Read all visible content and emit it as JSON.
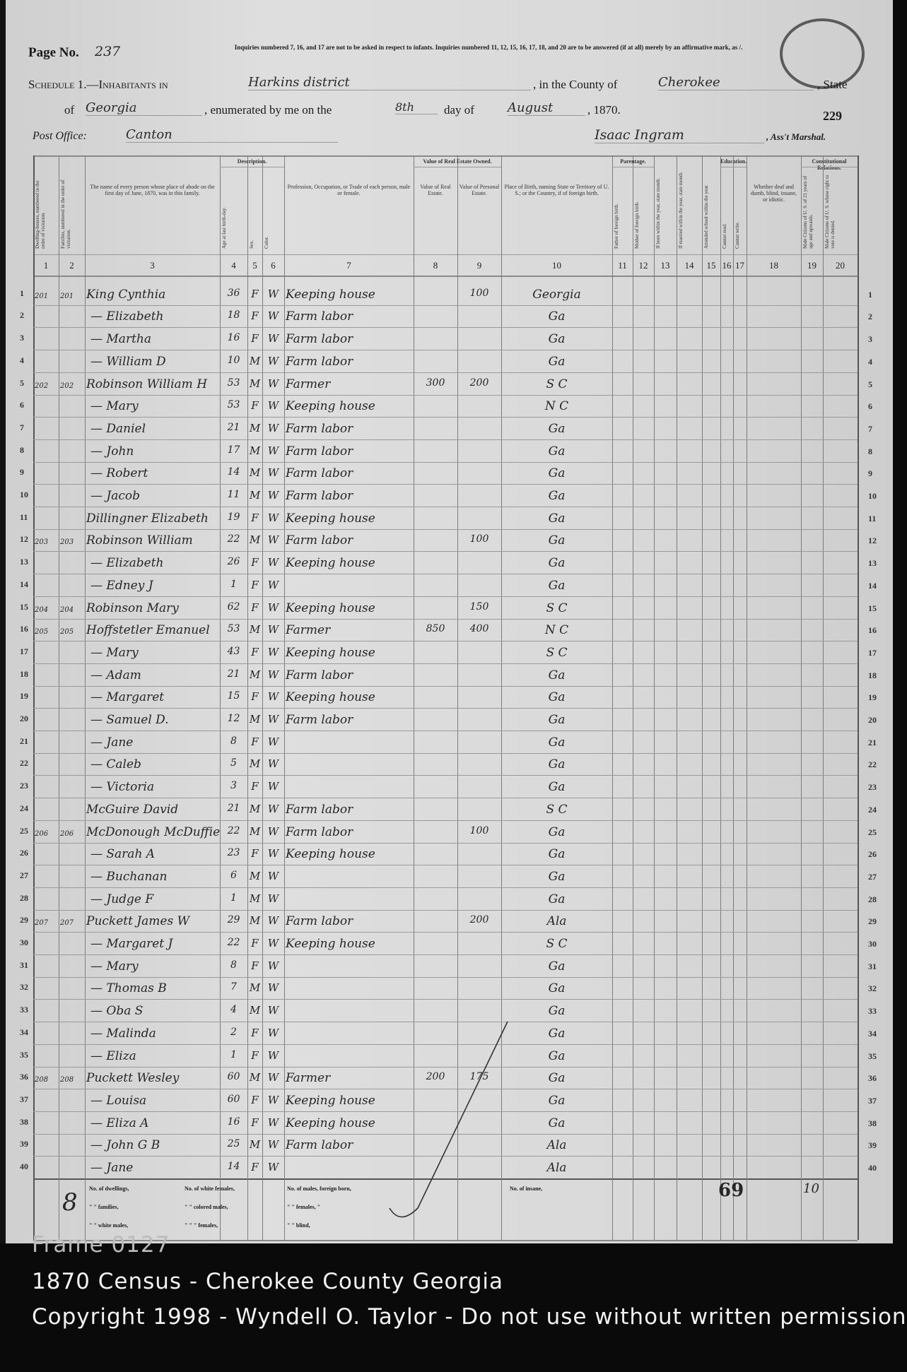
{
  "header": {
    "page_label": "Page No.",
    "page_no": "237",
    "instructions": "Inquiries numbered 7, 16, and 17 are not to be asked in respect to infants. Inquiries numbered 11, 12, 15, 16, 17, 18, and 20 are to be answered (if at all) merely by an affirmative mark, as /.",
    "schedule_label": "Schedule 1.—Inhabitants in",
    "district": "Harkins district",
    "county_label": ", in the County of",
    "county": "Cherokee",
    "state_label": ", State",
    "of_label": "of",
    "state": "Georgia",
    "enumerated_label": ", enumerated by me on the",
    "day": "8th",
    "day_of_label": "day of",
    "month": "August",
    "year": ", 1870.",
    "sheet_number": "229",
    "post_office_label": "Post Office:",
    "post_office": "Canton",
    "marshal_name": "Isaac Ingram",
    "marshal_label": ", Ass't Marshal."
  },
  "column_groups": [
    "Description.",
    "Value of Real Estate Owned.",
    "Parentage.",
    "Education.",
    "Constitutional Relations."
  ],
  "column_headers": [
    "Dwelling-houses, numbered in the order of visitation.",
    "Families, numbered in the order of visitation.",
    "The name of every person whose place of abode on the first day of June, 1870, was in this family.",
    "Age at last birth-day.",
    "Sex.",
    "Color.",
    "Profession, Occupation, or Trade of each person, male or female.",
    "Value of Real Estate.",
    "Value of Personal Estate.",
    "Place of Birth, naming State or Territory of U. S.; or the Country, if of foreign birth.",
    "Father of foreign birth.",
    "Mother of foreign birth.",
    "If born within the year, state month.",
    "If married within the year, state month.",
    "Attended school within the year.",
    "Cannot read.",
    "Cannot write.",
    "Whether deaf and dumb, blind, insane, or idiotic.",
    "Male Citizens of U. S. of 21 years of age and upwards.",
    "Male Citizens of U. S. whose right to vote is denied."
  ],
  "column_numbers": [
    "1",
    "2",
    "3",
    "4",
    "5",
    "6",
    "7",
    "8",
    "9",
    "10",
    "11",
    "12",
    "13",
    "14",
    "15",
    "16",
    "17",
    "18",
    "19",
    "20"
  ],
  "rows": [
    [
      "201",
      "201",
      "King Cynthia",
      "36",
      "F",
      "W",
      "Keeping house",
      "",
      "100",
      "Georgia"
    ],
    [
      "",
      "",
      "— Elizabeth",
      "18",
      "F",
      "W",
      "Farm labor",
      "",
      "",
      "Ga"
    ],
    [
      "",
      "",
      "— Martha",
      "16",
      "F",
      "W",
      "Farm labor",
      "",
      "",
      "Ga"
    ],
    [
      "",
      "",
      "— William D",
      "10",
      "M",
      "W",
      "Farm labor",
      "",
      "",
      "Ga"
    ],
    [
      "202",
      "202",
      "Robinson William H",
      "53",
      "M",
      "W",
      "Farmer",
      "300",
      "200",
      "S C"
    ],
    [
      "",
      "",
      "— Mary",
      "53",
      "F",
      "W",
      "Keeping house",
      "",
      "",
      "N C"
    ],
    [
      "",
      "",
      "— Daniel",
      "21",
      "M",
      "W",
      "Farm labor",
      "",
      "",
      "Ga"
    ],
    [
      "",
      "",
      "— John",
      "17",
      "M",
      "W",
      "Farm labor",
      "",
      "",
      "Ga"
    ],
    [
      "",
      "",
      "— Robert",
      "14",
      "M",
      "W",
      "Farm labor",
      "",
      "",
      "Ga"
    ],
    [
      "",
      "",
      "— Jacob",
      "11",
      "M",
      "W",
      "Farm labor",
      "",
      "",
      "Ga"
    ],
    [
      "",
      "",
      "Dillingner Elizabeth",
      "19",
      "F",
      "W",
      "Keeping house",
      "",
      "",
      "Ga"
    ],
    [
      "203",
      "203",
      "Robinson William",
      "22",
      "M",
      "W",
      "Farm labor",
      "",
      "100",
      "Ga"
    ],
    [
      "",
      "",
      "— Elizabeth",
      "26",
      "F",
      "W",
      "Keeping house",
      "",
      "",
      "Ga"
    ],
    [
      "",
      "",
      "— Edney J",
      "1",
      "F",
      "W",
      "",
      "",
      "",
      "Ga"
    ],
    [
      "204",
      "204",
      "Robinson Mary",
      "62",
      "F",
      "W",
      "Keeping house",
      "",
      "150",
      "S C"
    ],
    [
      "205",
      "205",
      "Hoffstetler Emanuel",
      "53",
      "M",
      "W",
      "Farmer",
      "850",
      "400",
      "N C"
    ],
    [
      "",
      "",
      "— Mary",
      "43",
      "F",
      "W",
      "Keeping house",
      "",
      "",
      "S C"
    ],
    [
      "",
      "",
      "— Adam",
      "21",
      "M",
      "W",
      "Farm labor",
      "",
      "",
      "Ga"
    ],
    [
      "",
      "",
      "— Margaret",
      "15",
      "F",
      "W",
      "Keeping house",
      "",
      "",
      "Ga"
    ],
    [
      "",
      "",
      "— Samuel D.",
      "12",
      "M",
      "W",
      "Farm labor",
      "",
      "",
      "Ga"
    ],
    [
      "",
      "",
      "— Jane",
      "8",
      "F",
      "W",
      "",
      "",
      "",
      "Ga"
    ],
    [
      "",
      "",
      "— Caleb",
      "5",
      "M",
      "W",
      "",
      "",
      "",
      "Ga"
    ],
    [
      "",
      "",
      "— Victoria",
      "3",
      "F",
      "W",
      "",
      "",
      "",
      "Ga"
    ],
    [
      "",
      "",
      "McGuire David",
      "21",
      "M",
      "W",
      "Farm labor",
      "",
      "",
      "S C"
    ],
    [
      "206",
      "206",
      "McDonough McDuffie",
      "22",
      "M",
      "W",
      "Farm labor",
      "",
      "100",
      "Ga"
    ],
    [
      "",
      "",
      "— Sarah A",
      "23",
      "F",
      "W",
      "Keeping house",
      "",
      "",
      "Ga"
    ],
    [
      "",
      "",
      "— Buchanan",
      "6",
      "M",
      "W",
      "",
      "",
      "",
      "Ga"
    ],
    [
      "",
      "",
      "— Judge F",
      "1",
      "M",
      "W",
      "",
      "",
      "",
      "Ga"
    ],
    [
      "207",
      "207",
      "Puckett James W",
      "29",
      "M",
      "W",
      "Farm labor",
      "",
      "200",
      "Ala"
    ],
    [
      "",
      "",
      "— Margaret J",
      "22",
      "F",
      "W",
      "Keeping house",
      "",
      "",
      "S C"
    ],
    [
      "",
      "",
      "— Mary",
      "8",
      "F",
      "W",
      "",
      "",
      "",
      "Ga"
    ],
    [
      "",
      "",
      "— Thomas B",
      "7",
      "M",
      "W",
      "",
      "",
      "",
      "Ga"
    ],
    [
      "",
      "",
      "— Oba S",
      "4",
      "M",
      "W",
      "",
      "",
      "",
      "Ga"
    ],
    [
      "",
      "",
      "— Malinda",
      "2",
      "F",
      "W",
      "",
      "",
      "",
      "Ga"
    ],
    [
      "",
      "",
      "— Eliza",
      "1",
      "F",
      "W",
      "",
      "",
      "",
      "Ga"
    ],
    [
      "208",
      "208",
      "Puckett Wesley",
      "60",
      "M",
      "W",
      "Farmer",
      "200",
      "175",
      "Ga"
    ],
    [
      "",
      "",
      "— Louisa",
      "60",
      "F",
      "W",
      "Keeping house",
      "",
      "",
      "Ga"
    ],
    [
      "",
      "",
      "— Eliza A",
      "16",
      "F",
      "W",
      "Keeping house",
      "",
      "",
      "Ga"
    ],
    [
      "",
      "",
      "— John G B",
      "25",
      "M",
      "W",
      "Farm labor",
      "",
      "",
      "Ala"
    ],
    [
      "",
      "",
      "— Jane",
      "14",
      "F",
      "W",
      "",
      "",
      "",
      "Ala"
    ]
  ],
  "summary": {
    "labels": [
      "No. of dwellings,",
      "\" \" families,",
      "\" \" white males,",
      "No. of white females,",
      "\" \" colored males,",
      "\" \" \" females,",
      "No. of males, foreign born,",
      "\" \" females, \"",
      "\" \" blind,",
      "No. of insane,"
    ],
    "tally_mark": "8",
    "count_17": "69",
    "count_19": "10"
  },
  "footer": {
    "frame": "Frame 0127",
    "title": "1870 Census - Cherokee County Georgia",
    "copyright": "Copyright 1998 - Wyndell O. Taylor - Do not use without written permission"
  }
}
